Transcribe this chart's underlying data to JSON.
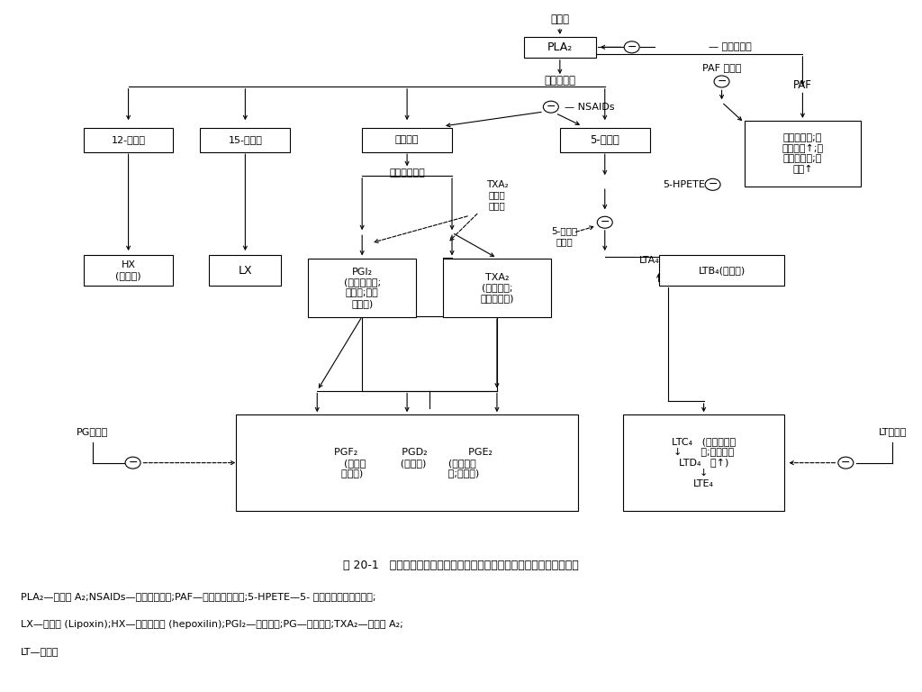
{
  "bg_color": "#ffffff",
  "fig_width": 10.24,
  "fig_height": 7.68,
  "caption_line1": "图 20-1   自膜磷脂生成的各种物质及其作用以及抗炎药的作用部位示意图",
  "caption_line2": "PLA₂—磷脂酶 A₂;NSAIDs—非甾体抗炎药;PAF—血小板活化因子;5-HPETE—5- 氢过氧化二十碳四烯酸;",
  "caption_line3": "LX—脂氧素 (Lipoxin);HX—羟基环氧素 (hepoxilin);PGI₂—前列环素;PG—前列腺素;TXA₂—血栓素 A₂;",
  "caption_line4": "LT—白三烯"
}
